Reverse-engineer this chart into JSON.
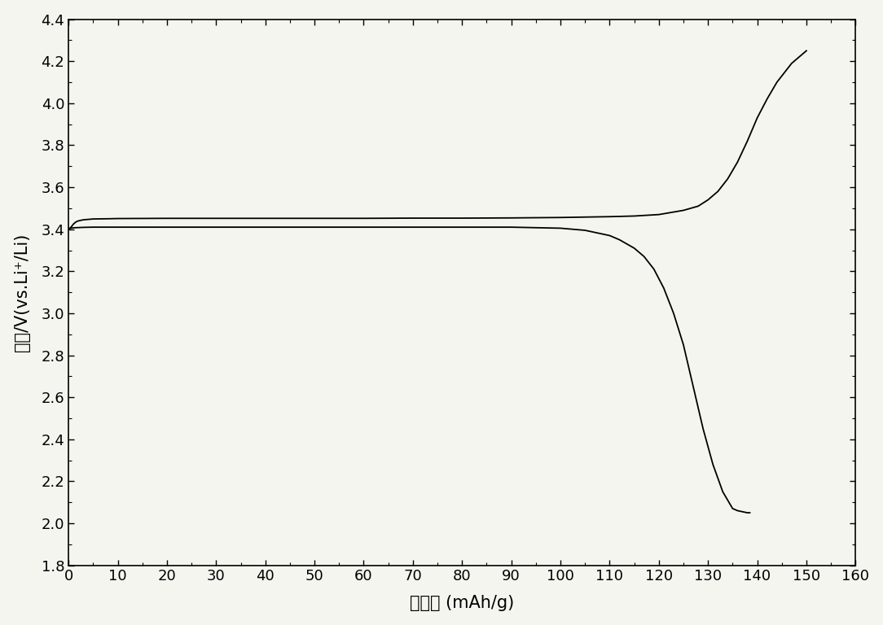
{
  "title": "",
  "xlabel": "比容量 (mAh/g)",
  "ylabel": "电压/V(vs.Li⁺/Li)",
  "xlim": [
    0,
    160
  ],
  "ylim": [
    1.8,
    4.4
  ],
  "xticks": [
    0,
    10,
    20,
    30,
    40,
    50,
    60,
    70,
    80,
    90,
    100,
    110,
    120,
    130,
    140,
    150,
    160
  ],
  "yticks": [
    1.8,
    2.0,
    2.2,
    2.4,
    2.6,
    2.8,
    3.0,
    3.2,
    3.4,
    3.6,
    3.8,
    4.0,
    4.2,
    4.4
  ],
  "line_color": "#000000",
  "background_color": "#f5f5f0",
  "charge_curve": {
    "x": [
      0,
      0.5,
      1,
      1.5,
      2,
      3,
      4,
      5,
      8,
      10,
      20,
      30,
      40,
      50,
      60,
      70,
      80,
      90,
      100,
      105,
      110,
      115,
      120,
      125,
      128,
      130,
      132,
      134,
      136,
      138,
      140,
      142,
      144,
      146,
      147,
      148,
      149,
      150
    ],
    "y": [
      3.4,
      3.41,
      3.425,
      3.435,
      3.44,
      3.445,
      3.447,
      3.449,
      3.45,
      3.451,
      3.452,
      3.452,
      3.452,
      3.452,
      3.452,
      3.453,
      3.453,
      3.454,
      3.456,
      3.458,
      3.46,
      3.463,
      3.47,
      3.49,
      3.51,
      3.54,
      3.58,
      3.64,
      3.72,
      3.82,
      3.93,
      4.02,
      4.1,
      4.16,
      4.19,
      4.21,
      4.23,
      4.25
    ]
  },
  "discharge_curve": {
    "x": [
      0,
      0.5,
      1,
      2,
      3,
      5,
      10,
      20,
      30,
      40,
      50,
      60,
      70,
      80,
      90,
      100,
      105,
      108,
      110,
      112,
      115,
      117,
      119,
      121,
      123,
      125,
      127,
      129,
      131,
      133,
      135,
      136,
      137,
      138,
      138.5
    ],
    "y": [
      3.4,
      3.405,
      3.407,
      3.408,
      3.409,
      3.41,
      3.41,
      3.41,
      3.41,
      3.41,
      3.41,
      3.41,
      3.41,
      3.41,
      3.41,
      3.405,
      3.395,
      3.38,
      3.37,
      3.35,
      3.31,
      3.27,
      3.21,
      3.12,
      3.0,
      2.85,
      2.65,
      2.45,
      2.28,
      2.15,
      2.07,
      2.06,
      2.055,
      2.05,
      2.05
    ]
  }
}
